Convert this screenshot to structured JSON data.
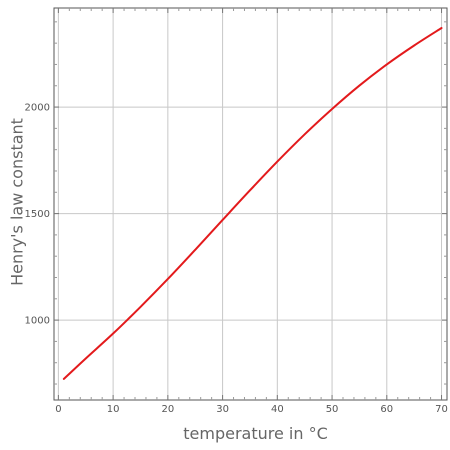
{
  "chart_data": {
    "type": "line",
    "title": "",
    "xlabel": "temperature in °C",
    "ylabel": "Henry's law constant",
    "xlim": [
      -0.8,
      71
    ],
    "ylim": [
      625,
      2465
    ],
    "x_ticks": [
      0,
      10,
      20,
      30,
      40,
      50,
      60,
      70
    ],
    "y_ticks": [
      1000,
      1500,
      2000
    ],
    "grid": true,
    "legend": "none",
    "series": [
      {
        "color": "#e31a1c",
        "x": [
          1,
          5,
          10,
          15,
          20,
          25,
          30,
          35,
          40,
          45,
          50,
          55,
          60,
          65,
          70
        ],
        "y": [
          724,
          820,
          937,
          1062,
          1193,
          1330,
          1470,
          1609,
          1744,
          1872,
          1991,
          2101,
          2200,
          2289,
          2371
        ]
      }
    ]
  }
}
